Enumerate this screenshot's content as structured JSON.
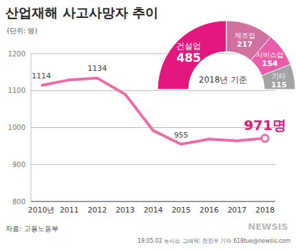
{
  "chart_data": [
    {
      "type": "line",
      "title": "산업재해 사고사망자 추이",
      "unit": "(단위: 명)",
      "categories": [
        "2010년",
        "2011",
        "2012",
        "2013",
        "2014",
        "2015",
        "2016",
        "2017",
        "2018"
      ],
      "values": [
        1114,
        1129,
        1134,
        1090,
        992,
        955,
        969,
        964,
        971
      ],
      "value_labels": [
        "1114",
        null,
        "1134",
        null,
        null,
        "955",
        null,
        null,
        "971명"
      ],
      "data_labels": true,
      "color": "#ee6aa7",
      "ylim": [
        800,
        1200
      ],
      "yticks": [
        800,
        900,
        1000,
        1100,
        1200
      ],
      "grid": true,
      "source": "자료: 고용노동부",
      "credit": "19.05.02 뉴시스 그래픽: 전진우 기자 618tue@newsis.com",
      "watermark": "NEWSIS"
    },
    {
      "type": "pie",
      "title": "2018년 기준",
      "categories": [
        "건설업",
        "제조업",
        "서비스업",
        "기타"
      ],
      "values": [
        485,
        217,
        154,
        115
      ],
      "colors": [
        "#e2187f",
        "#d0709f",
        "#e95ca9",
        "#a3a3a3"
      ],
      "data_labels": true
    }
  ]
}
